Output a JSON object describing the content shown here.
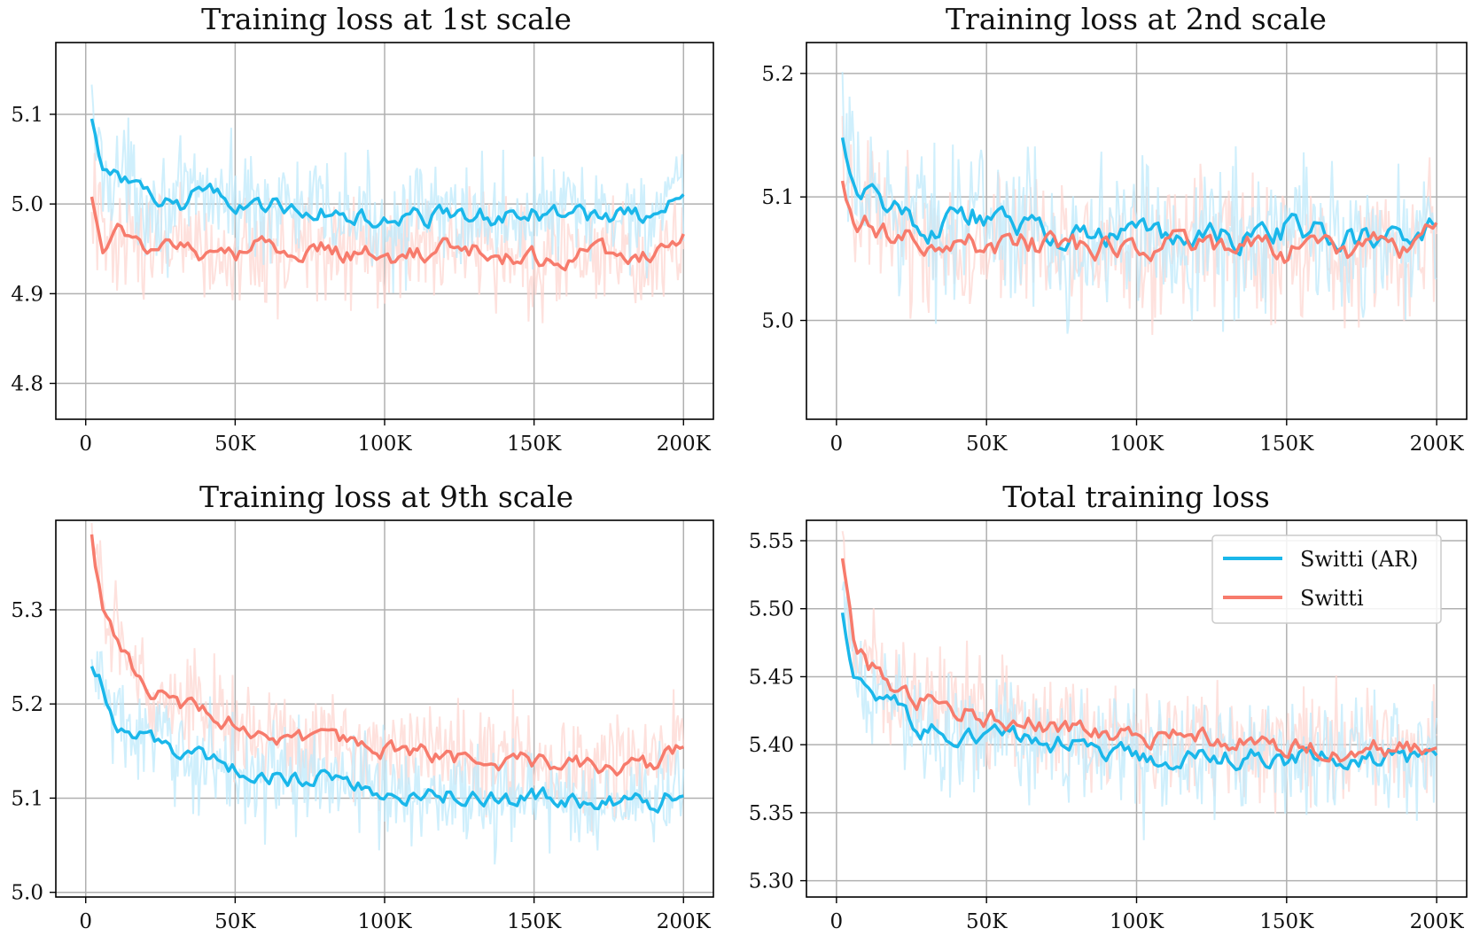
{
  "colors": {
    "switti_ar": "#1ab7ea",
    "switti_ar_raw": "#bfe9fb",
    "switti": "#f77b6c",
    "switti_raw": "#fdd7d2",
    "grid": "#b0b0b0",
    "axis": "#000000"
  },
  "legend": {
    "items": [
      {
        "label": "Switti (AR)",
        "color": "#1ab7ea"
      },
      {
        "label": "Switti",
        "color": "#f77b6c"
      }
    ]
  },
  "chart_data": [
    {
      "type": "line",
      "title": "Training loss at 1st scale",
      "xlabel": "",
      "ylabel": "",
      "xlim": [
        -10000,
        210000
      ],
      "ylim": [
        4.76,
        5.18
      ],
      "xticks": [
        0,
        50000,
        100000,
        150000,
        200000
      ],
      "xtick_labels": [
        "0",
        "50K",
        "100K",
        "150K",
        "200K"
      ],
      "yticks": [
        4.8,
        4.9,
        5.0,
        5.1
      ],
      "ytick_labels": [
        "4.8",
        "4.9",
        "5.0",
        "5.1"
      ],
      "grid": true,
      "x": [
        2000,
        6000,
        10000,
        20000,
        30000,
        40000,
        50000,
        60000,
        70000,
        80000,
        90000,
        100000,
        110000,
        120000,
        130000,
        140000,
        150000,
        160000,
        170000,
        180000,
        190000,
        200000
      ],
      "series": [
        {
          "name": "Switti (AR)",
          "values": [
            5.095,
            5.03,
            5.04,
            5.005,
            4.995,
            5.015,
            5.0,
            5.0,
            4.995,
            4.99,
            4.985,
            4.98,
            4.985,
            4.985,
            4.99,
            4.985,
            4.99,
            4.99,
            4.985,
            4.99,
            4.985,
            5.005
          ],
          "raw_noise": 0.05
        },
        {
          "name": "Switti",
          "values": [
            5.008,
            4.955,
            4.975,
            4.95,
            4.955,
            4.945,
            4.94,
            4.955,
            4.95,
            4.95,
            4.945,
            4.94,
            4.945,
            4.95,
            4.95,
            4.94,
            4.94,
            4.94,
            4.945,
            4.945,
            4.945,
            4.96
          ],
          "raw_noise": 0.05
        }
      ]
    },
    {
      "type": "line",
      "title": "Training loss at 2nd scale",
      "xlabel": "",
      "ylabel": "",
      "xlim": [
        -10000,
        210000
      ],
      "ylim": [
        4.92,
        5.225
      ],
      "xticks": [
        0,
        50000,
        100000,
        150000,
        200000
      ],
      "xtick_labels": [
        "0",
        "50K",
        "100K",
        "150K",
        "200K"
      ],
      "yticks": [
        5.0,
        5.1,
        5.2
      ],
      "ytick_labels": [
        "5.0",
        "5.1",
        "5.2"
      ],
      "grid": true,
      "x": [
        2000,
        6000,
        10000,
        20000,
        30000,
        40000,
        50000,
        60000,
        70000,
        80000,
        90000,
        100000,
        110000,
        120000,
        130000,
        140000,
        150000,
        160000,
        170000,
        180000,
        190000,
        200000
      ],
      "series": [
        {
          "name": "Switti (AR)",
          "values": [
            5.148,
            5.1,
            5.1,
            5.095,
            5.075,
            5.085,
            5.085,
            5.075,
            5.07,
            5.065,
            5.065,
            5.07,
            5.065,
            5.065,
            5.07,
            5.065,
            5.075,
            5.07,
            5.065,
            5.065,
            5.065,
            5.075
          ],
          "raw_noise": 0.05
        },
        {
          "name": "Switti",
          "values": [
            5.113,
            5.085,
            5.08,
            5.07,
            5.065,
            5.065,
            5.06,
            5.065,
            5.06,
            5.06,
            5.06,
            5.055,
            5.06,
            5.065,
            5.06,
            5.06,
            5.055,
            5.06,
            5.055,
            5.06,
            5.055,
            5.075
          ],
          "raw_noise": 0.045
        }
      ]
    },
    {
      "type": "line",
      "title": "Training loss at 9th scale",
      "xlabel": "",
      "ylabel": "",
      "xlim": [
        -10000,
        210000
      ],
      "ylim": [
        4.995,
        5.395
      ],
      "xticks": [
        0,
        50000,
        100000,
        150000,
        200000
      ],
      "xtick_labels": [
        "0",
        "50K",
        "100K",
        "150K",
        "200K"
      ],
      "yticks": [
        5.0,
        5.1,
        5.2,
        5.3
      ],
      "ytick_labels": [
        "5.0",
        "5.1",
        "5.2",
        "5.3"
      ],
      "grid": true,
      "x": [
        2000,
        6000,
        10000,
        20000,
        30000,
        40000,
        50000,
        60000,
        70000,
        80000,
        90000,
        100000,
        110000,
        120000,
        130000,
        140000,
        150000,
        160000,
        170000,
        180000,
        190000,
        200000
      ],
      "series": [
        {
          "name": "Switti (AR)",
          "values": [
            5.24,
            5.22,
            5.18,
            5.16,
            5.15,
            5.14,
            5.13,
            5.125,
            5.12,
            5.12,
            5.115,
            5.11,
            5.105,
            5.105,
            5.105,
            5.1,
            5.1,
            5.1,
            5.095,
            5.095,
            5.095,
            5.11
          ],
          "raw_noise": 0.045
        },
        {
          "name": "Switti",
          "values": [
            5.38,
            5.3,
            5.27,
            5.22,
            5.2,
            5.19,
            5.18,
            5.17,
            5.165,
            5.16,
            5.155,
            5.15,
            5.15,
            5.145,
            5.14,
            5.14,
            5.14,
            5.135,
            5.135,
            5.135,
            5.135,
            5.155
          ],
          "raw_noise": 0.045
        }
      ]
    },
    {
      "type": "line",
      "title": "Total training loss",
      "xlabel": "",
      "ylabel": "",
      "xlim": [
        -10000,
        210000
      ],
      "ylim": [
        5.288,
        5.565
      ],
      "xticks": [
        0,
        50000,
        100000,
        150000,
        200000
      ],
      "xtick_labels": [
        "0",
        "50K",
        "100K",
        "150K",
        "200K"
      ],
      "yticks": [
        5.3,
        5.35,
        5.4,
        5.45,
        5.5,
        5.55
      ],
      "ytick_labels": [
        "5.30",
        "5.35",
        "5.40",
        "5.45",
        "5.50",
        "5.55"
      ],
      "grid": true,
      "legend_position": "top-right",
      "x": [
        2000,
        6000,
        10000,
        20000,
        30000,
        40000,
        50000,
        60000,
        70000,
        80000,
        90000,
        100000,
        110000,
        120000,
        130000,
        140000,
        150000,
        160000,
        170000,
        180000,
        190000,
        200000
      ],
      "series": [
        {
          "name": "Switti (AR)",
          "values": [
            5.497,
            5.455,
            5.44,
            5.43,
            5.41,
            5.41,
            5.405,
            5.405,
            5.4,
            5.4,
            5.395,
            5.39,
            5.39,
            5.39,
            5.39,
            5.39,
            5.39,
            5.39,
            5.385,
            5.39,
            5.39,
            5.4
          ],
          "raw_noise": 0.035
        },
        {
          "name": "Switti",
          "values": [
            5.537,
            5.47,
            5.46,
            5.44,
            5.43,
            5.425,
            5.42,
            5.415,
            5.415,
            5.41,
            5.405,
            5.405,
            5.405,
            5.41,
            5.4,
            5.4,
            5.4,
            5.4,
            5.395,
            5.4,
            5.395,
            5.405
          ],
          "raw_noise": 0.035
        }
      ]
    }
  ]
}
